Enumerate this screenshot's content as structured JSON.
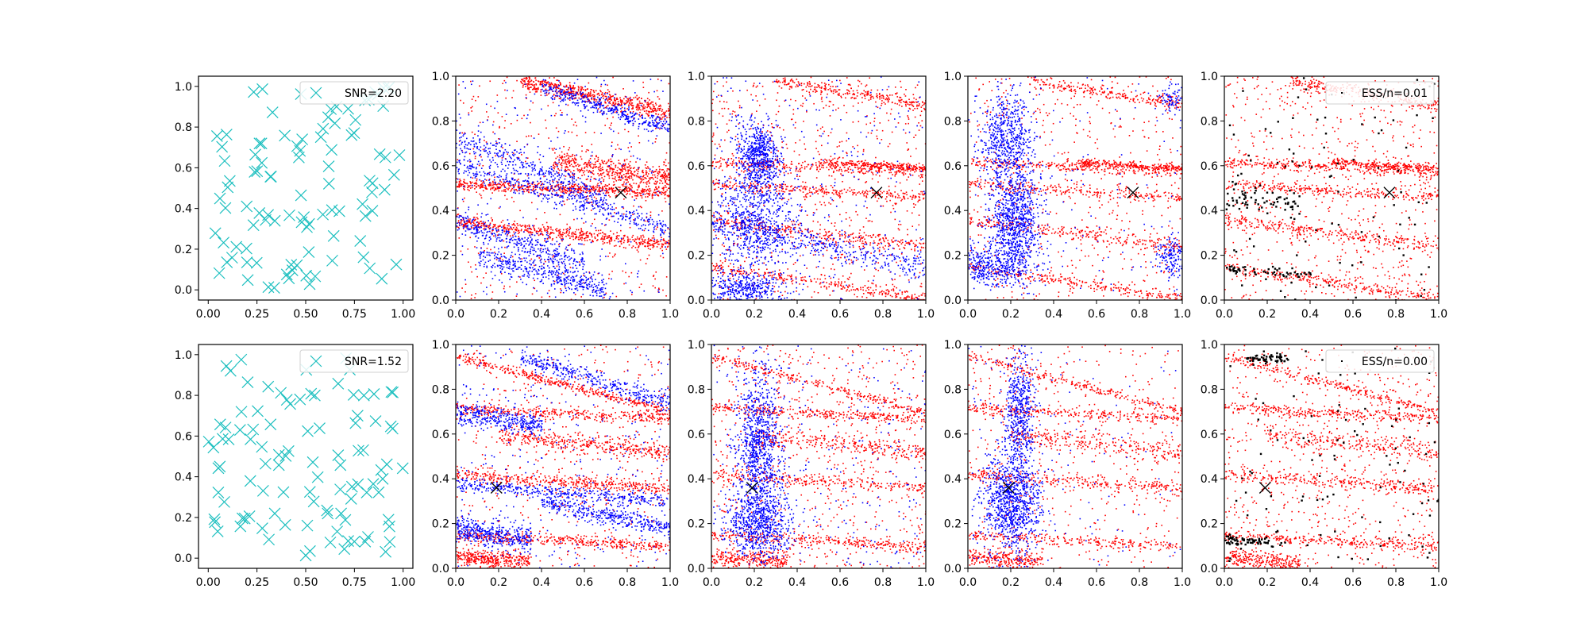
{
  "chart_data": [
    {
      "type": "scatter",
      "row": 0,
      "col": 0,
      "xlim": [
        -0.05,
        1.05
      ],
      "ylim": [
        -0.05,
        1.05
      ],
      "xticks": [
        "0.00",
        "0.25",
        "0.50",
        "0.75",
        "1.00"
      ],
      "yticks": [
        "0.0",
        "0.2",
        "0.4",
        "0.6",
        "0.8",
        "1.0"
      ],
      "legend": "SNR=2.20",
      "legend_position": "top-right",
      "marker": "x",
      "color": "#1cbfbf",
      "n_points": 100,
      "seed": 11
    },
    {
      "type": "scatter",
      "row": 0,
      "col": 1,
      "xlim": [
        0,
        1
      ],
      "ylim": [
        0,
        1
      ],
      "xticks": [
        "0.0",
        "0.2",
        "0.4",
        "0.6",
        "0.8",
        "1.0"
      ],
      "yticks": [
        "0.0",
        "0.2",
        "0.4",
        "0.6",
        "0.8",
        "1.0"
      ],
      "series": [
        {
          "color": "#ff0000"
        },
        {
          "color": "#0000ff"
        }
      ],
      "target": [
        0.77,
        0.48
      ],
      "seed": 21
    },
    {
      "type": "scatter",
      "row": 0,
      "col": 2,
      "xlim": [
        0,
        1
      ],
      "ylim": [
        0,
        1
      ],
      "xticks": [
        "0.0",
        "0.2",
        "0.4",
        "0.6",
        "0.8",
        "1.0"
      ],
      "yticks": [
        "0.0",
        "0.2",
        "0.4",
        "0.6",
        "0.8",
        "1.0"
      ],
      "series": [
        {
          "color": "#ff0000"
        },
        {
          "color": "#0000ff"
        }
      ],
      "target": [
        0.77,
        0.48
      ],
      "seed": 31
    },
    {
      "type": "scatter",
      "row": 0,
      "col": 3,
      "xlim": [
        0,
        1
      ],
      "ylim": [
        0,
        1
      ],
      "xticks": [
        "0.0",
        "0.2",
        "0.4",
        "0.6",
        "0.8",
        "1.0"
      ],
      "yticks": [
        "0.0",
        "0.2",
        "0.4",
        "0.6",
        "0.8",
        "1.0"
      ],
      "series": [
        {
          "color": "#ff0000"
        },
        {
          "color": "#0000ff"
        }
      ],
      "target": [
        0.77,
        0.48
      ],
      "seed": 41
    },
    {
      "type": "scatter",
      "row": 0,
      "col": 4,
      "xlim": [
        0,
        1
      ],
      "ylim": [
        0,
        1
      ],
      "xticks": [
        "0.0",
        "0.2",
        "0.4",
        "0.6",
        "0.8",
        "1.0"
      ],
      "yticks": [
        "0.0",
        "0.2",
        "0.4",
        "0.6",
        "0.8",
        "1.0"
      ],
      "legend": "ESS/n=0.01",
      "legend_position": "top-right",
      "series": [
        {
          "color": "#ff0000"
        },
        {
          "color": "#000000"
        }
      ],
      "target": [
        0.77,
        0.48
      ],
      "seed": 51
    },
    {
      "type": "scatter",
      "row": 1,
      "col": 0,
      "xlim": [
        -0.05,
        1.05
      ],
      "ylim": [
        -0.05,
        1.05
      ],
      "xticks": [
        "0.00",
        "0.25",
        "0.50",
        "0.75",
        "1.00"
      ],
      "yticks": [
        "0.0",
        "0.2",
        "0.4",
        "0.6",
        "0.8",
        "1.0"
      ],
      "legend": "SNR=1.52",
      "legend_position": "top-right",
      "marker": "x",
      "color": "#1cbfbf",
      "n_points": 100,
      "seed": 12
    },
    {
      "type": "scatter",
      "row": 1,
      "col": 1,
      "xlim": [
        0,
        1
      ],
      "ylim": [
        0,
        1
      ],
      "xticks": [
        "0.0",
        "0.2",
        "0.4",
        "0.6",
        "0.8",
        "1.0"
      ],
      "yticks": [
        "0.0",
        "0.2",
        "0.4",
        "0.6",
        "0.8",
        "1.0"
      ],
      "series": [
        {
          "color": "#ff0000"
        },
        {
          "color": "#0000ff"
        }
      ],
      "target": [
        0.19,
        0.36
      ],
      "seed": 22
    },
    {
      "type": "scatter",
      "row": 1,
      "col": 2,
      "xlim": [
        0,
        1
      ],
      "ylim": [
        0,
        1
      ],
      "xticks": [
        "0.0",
        "0.2",
        "0.4",
        "0.6",
        "0.8",
        "1.0"
      ],
      "yticks": [
        "0.0",
        "0.2",
        "0.4",
        "0.6",
        "0.8",
        "1.0"
      ],
      "series": [
        {
          "color": "#ff0000"
        },
        {
          "color": "#0000ff"
        }
      ],
      "target": [
        0.19,
        0.36
      ],
      "seed": 32
    },
    {
      "type": "scatter",
      "row": 1,
      "col": 3,
      "xlim": [
        0,
        1
      ],
      "ylim": [
        0,
        1
      ],
      "xticks": [
        "0.0",
        "0.2",
        "0.4",
        "0.6",
        "0.8",
        "1.0"
      ],
      "yticks": [
        "0.0",
        "0.2",
        "0.4",
        "0.6",
        "0.8",
        "1.0"
      ],
      "series": [
        {
          "color": "#ff0000"
        },
        {
          "color": "#0000ff"
        }
      ],
      "target": [
        0.19,
        0.36
      ],
      "seed": 42
    },
    {
      "type": "scatter",
      "row": 1,
      "col": 4,
      "xlim": [
        0,
        1
      ],
      "ylim": [
        0,
        1
      ],
      "xticks": [
        "0.0",
        "0.2",
        "0.4",
        "0.6",
        "0.8",
        "1.0"
      ],
      "yticks": [
        "0.0",
        "0.2",
        "0.4",
        "0.6",
        "0.8",
        "1.0"
      ],
      "legend": "ESS/n=0.00",
      "legend_position": "top-right",
      "series": [
        {
          "color": "#ff0000"
        },
        {
          "color": "#000000"
        }
      ],
      "target": [
        0.19,
        0.36
      ],
      "seed": 52
    }
  ]
}
